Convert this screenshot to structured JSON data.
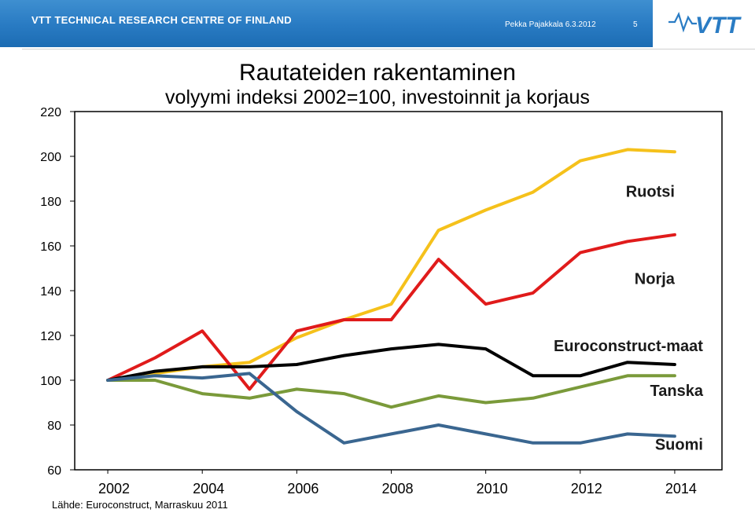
{
  "header": {
    "organization": "VTT TECHNICAL RESEARCH CENTRE OF FINLAND",
    "author_date": "Pekka Pajakkala 6.3.2012",
    "slide_number": "5",
    "logo_text": "VTT"
  },
  "colors": {
    "header_band": "#2a7cc4",
    "ruotsi": "#f5c11b",
    "norja": "#e01b1b",
    "euroconstruct": "#000000",
    "tanska": "#7a9a3a",
    "suomi": "#3a6690"
  },
  "source_note": "Lähde: Euroconstruct, Marraskuu 2011",
  "chart_data": {
    "type": "line",
    "title": "Rautateiden rakentaminen",
    "subtitle": "volyymi indeksi 2002=100, investoinnit ja korjaus",
    "xlabel": "",
    "ylabel": "",
    "x": [
      2002,
      2003,
      2004,
      2005,
      2006,
      2007,
      2008,
      2009,
      2010,
      2011,
      2012,
      2013,
      2014
    ],
    "x_tick_labels": [
      "2002",
      "2004",
      "2006",
      "2008",
      "2010",
      "2012",
      "2014"
    ],
    "x_ticks": [
      2002,
      2004,
      2006,
      2008,
      2010,
      2012,
      2014
    ],
    "y_tick_labels": [
      "60",
      "80",
      "100",
      "120",
      "140",
      "160",
      "180",
      "200",
      "220"
    ],
    "y_ticks": [
      60,
      80,
      100,
      120,
      140,
      160,
      180,
      200,
      220
    ],
    "ylim": [
      60,
      220
    ],
    "xlim": [
      2001.3,
      2015.0
    ],
    "grid": false,
    "series": [
      {
        "key": "ruotsi",
        "name": "Ruotsi",
        "values": [
          100,
          103,
          106,
          108,
          119,
          127,
          134,
          167,
          176,
          184,
          198,
          203,
          202
        ]
      },
      {
        "key": "norja",
        "name": "Norja",
        "values": [
          100,
          110,
          122,
          96,
          122,
          127,
          127,
          154,
          134,
          139,
          157,
          162,
          165
        ]
      },
      {
        "key": "euroconstruct",
        "name": "Euroconstruct-maat",
        "values": [
          100,
          104,
          106,
          106,
          107,
          111,
          114,
          116,
          114,
          102,
          102,
          108,
          107
        ]
      },
      {
        "key": "tanska",
        "name": "Tanska",
        "values": [
          100,
          100,
          94,
          92,
          96,
          94,
          88,
          93,
          90,
          92,
          97,
          102,
          102
        ]
      },
      {
        "key": "suomi",
        "name": "Suomi",
        "values": [
          100,
          102,
          101,
          103,
          86,
          72,
          76,
          80,
          76,
          72,
          72,
          76,
          75
        ]
      }
    ],
    "label_anchors": [
      {
        "key": "ruotsi",
        "text": "Ruotsi",
        "x": 2014,
        "y": 182
      },
      {
        "key": "norja",
        "text": "Norja",
        "x": 2014,
        "y": 143
      },
      {
        "key": "euroconstruct",
        "text": "Euroconstruct-maat",
        "x": 2014.6,
        "y": 113
      },
      {
        "key": "tanska",
        "text": "Tanska",
        "x": 2014.6,
        "y": 93
      },
      {
        "key": "suomi",
        "text": "Suomi",
        "x": 2014.6,
        "y": 69
      }
    ]
  }
}
